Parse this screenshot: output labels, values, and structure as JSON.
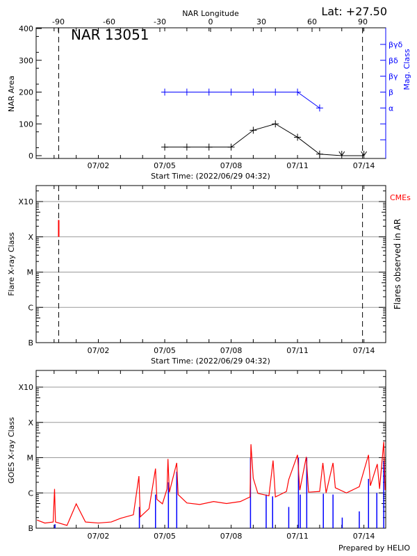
{
  "colors": {
    "axis": "#000000",
    "grid": "#999999",
    "area": "#000000",
    "mag": "#0000ff",
    "goes": "#ff0000",
    "flares": "#0000ff",
    "cme": "#ff0000"
  },
  "header": {
    "lat_label": "Lat: +27.50",
    "region_label": "NAR 13051"
  },
  "footer": {
    "credit": "Prepared by HELIO"
  },
  "chart_data": [
    {
      "type": "line",
      "title": "NAR 13051",
      "ylabel": "NAR Area",
      "y2label": "Mag. Class",
      "x2label": "NAR Longitude",
      "xlabel": "Start Time: (2022/06/29 04:32)",
      "xlim": [
        "2022-06-29 04:32",
        "2022-07-14 23:40"
      ],
      "ylim": [
        0,
        400
      ],
      "yticks": [
        "0",
        "100",
        "200",
        "300",
        "400"
      ],
      "xticks": [
        {
          "label": "07/02",
          "t": "2022-07-02 00:00"
        },
        {
          "label": "07/05",
          "t": "2022-07-05 00:00"
        },
        {
          "label": "07/08",
          "t": "2022-07-08 00:00"
        },
        {
          "label": "07/11",
          "t": "2022-07-11 00:00"
        },
        {
          "label": "07/14",
          "t": "2022-07-14 00:00"
        }
      ],
      "longitude_ticks": [
        "-90",
        "-60",
        "-30",
        "0",
        "30",
        "60",
        "90"
      ],
      "mag_class_ticks": [
        {
          "label": "",
          "level": 50
        },
        {
          "label": "",
          "level": 100
        },
        {
          "label": "α",
          "level": 150
        },
        {
          "label": "β",
          "level": 200
        },
        {
          "label": "βγ",
          "level": 250
        },
        {
          "label": "βδ",
          "level": 300
        },
        {
          "label": "βγδ",
          "level": 350
        }
      ],
      "limb_markers": [
        "2022-06-30 05:00",
        "2022-07-13 22:30"
      ],
      "series": [
        {
          "name": "NAR Area",
          "points": [
            {
              "t": "2022-07-05 00:00",
              "v": 27
            },
            {
              "t": "2022-07-06 00:00",
              "v": 27
            },
            {
              "t": "2022-07-07 00:00",
              "v": 27
            },
            {
              "t": "2022-07-08 00:00",
              "v": 27
            },
            {
              "t": "2022-07-09 00:00",
              "v": 80
            },
            {
              "t": "2022-07-10 00:00",
              "v": 100
            },
            {
              "t": "2022-07-11 00:00",
              "v": 58
            },
            {
              "t": "2022-07-12 00:00",
              "v": 5
            },
            {
              "t": "2022-07-13 00:00",
              "v": 0,
              "marker": "arrow"
            },
            {
              "t": "2022-07-14 00:00",
              "v": 0,
              "marker": "arrow"
            }
          ]
        },
        {
          "name": "Mag. Class",
          "points": [
            {
              "t": "2022-07-05 00:00",
              "class": "β"
            },
            {
              "t": "2022-07-06 00:00",
              "class": "β"
            },
            {
              "t": "2022-07-07 00:00",
              "class": "β"
            },
            {
              "t": "2022-07-08 00:00",
              "class": "β"
            },
            {
              "t": "2022-07-09 00:00",
              "class": "β"
            },
            {
              "t": "2022-07-10 00:00",
              "class": "β"
            },
            {
              "t": "2022-07-11 00:00",
              "class": "β"
            },
            {
              "t": "2022-07-12 00:00",
              "class": "α"
            }
          ]
        }
      ]
    },
    {
      "type": "scatter",
      "ylabel": "Flare X-ray Class",
      "y2label": "Flares observed in AR",
      "legend_label": "CMEs",
      "xlabel": "Start Time: (2022/06/29 04:32)",
      "yscale": "log",
      "yticks": [
        "B",
        "C",
        "M",
        "X",
        "X10"
      ],
      "grid": true,
      "limb_markers": [
        "2022-06-30 05:00",
        "2022-07-13 22:30"
      ],
      "cme_events": [
        {
          "t": "2022-06-30 05:00",
          "flux_from": 0.0001,
          "flux_to": 0.0003
        }
      ]
    },
    {
      "type": "line",
      "ylabel": "GOES X-ray Class",
      "yscale": "log",
      "yticks": [
        "B",
        "C",
        "M",
        "X",
        "X10"
      ],
      "grid": true,
      "series": [
        {
          "color": "#ff0000",
          "points": [
            [
              "2022-06-29 05:30",
              1.7e-07
            ],
            [
              "2022-06-29 14:00",
              1.4e-07
            ],
            [
              "2022-06-29 23:00",
              1.5e-07
            ],
            [
              "2022-06-30 00:30",
              1.3e-06
            ],
            [
              "2022-06-30 01:30",
              1.5e-07
            ],
            [
              "2022-06-30 14:00",
              1.2e-07
            ],
            [
              "2022-07-01 00:00",
              4.9e-07
            ],
            [
              "2022-07-01 10:00",
              1.5e-07
            ],
            [
              "2022-07-02 00:00",
              1.4e-07
            ],
            [
              "2022-07-02 14:00",
              1.5e-07
            ],
            [
              "2022-07-03 00:00",
              1.9e-07
            ],
            [
              "2022-07-03 14:00",
              2.4e-07
            ],
            [
              "2022-07-03 20:00",
              3e-06
            ],
            [
              "2022-07-03 21:30",
              2.1e-07
            ],
            [
              "2022-07-04 07:00",
              3.6e-07
            ],
            [
              "2022-07-04 14:00",
              4.9e-06
            ],
            [
              "2022-07-04 15:30",
              6.6e-07
            ],
            [
              "2022-07-04 21:30",
              4.9e-07
            ],
            [
              "2022-07-05 02:30",
              1.3e-06
            ],
            [
              "2022-07-05 03:30",
              9.2e-06
            ],
            [
              "2022-07-05 05:00",
              1.05e-06
            ],
            [
              "2022-07-05 13:00",
              7.1e-06
            ],
            [
              "2022-07-05 14:30",
              9e-07
            ],
            [
              "2022-07-06 00:00",
              5.2e-07
            ],
            [
              "2022-07-06 14:00",
              4.7e-07
            ],
            [
              "2022-07-07 05:00",
              5.7e-07
            ],
            [
              "2022-07-07 19:00",
              5e-07
            ],
            [
              "2022-07-08 10:00",
              5.7e-07
            ],
            [
              "2022-07-08 20:30",
              7.7e-07
            ],
            [
              "2022-07-08 21:30",
              2.4e-05
            ],
            [
              "2022-07-09 00:00",
              2.6e-06
            ],
            [
              "2022-07-09 05:00",
              9.7e-07
            ],
            [
              "2022-07-09 17:00",
              8.3e-07
            ],
            [
              "2022-07-09 21:30",
              8.3e-06
            ],
            [
              "2022-07-10 00:00",
              7.7e-07
            ],
            [
              "2022-07-10 12:00",
              1.1e-06
            ],
            [
              "2022-07-10 14:30",
              2.4e-06
            ],
            [
              "2022-07-11 00:00",
              1.2e-05
            ],
            [
              "2022-07-11 02:30",
              1.2e-06
            ],
            [
              "2022-07-11 09:30",
              1.05e-05
            ],
            [
              "2022-07-11 12:00",
              1.05e-06
            ],
            [
              "2022-07-12 00:00",
              1.1e-06
            ],
            [
              "2022-07-12 03:30",
              7.1e-06
            ],
            [
              "2022-07-12 07:00",
              1e-06
            ],
            [
              "2022-07-12 14:30",
              7.1e-06
            ],
            [
              "2022-07-12 17:00",
              1.4e-06
            ],
            [
              "2022-07-13 05:00",
              1e-06
            ],
            [
              "2022-07-13 19:00",
              1.5e-06
            ],
            [
              "2022-07-14 05:00",
              1.2e-05
            ],
            [
              "2022-07-14 07:00",
              1.6e-06
            ],
            [
              "2022-07-14 14:30",
              6.6e-06
            ],
            [
              "2022-07-14 17:00",
              1.3e-06
            ],
            [
              "2022-07-14 21:30",
              2.8e-05
            ],
            [
              "2022-07-14 23:00",
              1.2e-06
            ]
          ]
        },
        {
          "color": "#0000ff",
          "style": "spikes",
          "points": [
            [
              "2022-06-30 01:00",
              1.3e-07
            ],
            [
              "2022-07-03 20:30",
              4e-07
            ],
            [
              "2022-07-04 14:00",
              9e-07
            ],
            [
              "2022-07-05 04:00",
              2e-06
            ],
            [
              "2022-07-05 13:00",
              4e-06
            ],
            [
              "2022-07-08 21:00",
              1e-05
            ],
            [
              "2022-07-09 14:00",
              9e-07
            ],
            [
              "2022-07-09 21:00",
              8e-07
            ],
            [
              "2022-07-10 14:30",
              4e-07
            ],
            [
              "2022-07-11 01:00",
              1e-05
            ],
            [
              "2022-07-11 03:00",
              9e-07
            ],
            [
              "2022-07-11 10:00",
              1e-05
            ],
            [
              "2022-07-12 04:00",
              9.5e-07
            ],
            [
              "2022-07-12 14:30",
              9e-07
            ],
            [
              "2022-07-13 00:30",
              2e-07
            ],
            [
              "2022-07-13 19:00",
              3e-07
            ],
            [
              "2022-07-14 05:00",
              2.5e-06
            ],
            [
              "2022-07-14 14:00",
              1e-06
            ],
            [
              "2022-07-14 21:30",
              8e-06
            ]
          ]
        }
      ]
    }
  ]
}
